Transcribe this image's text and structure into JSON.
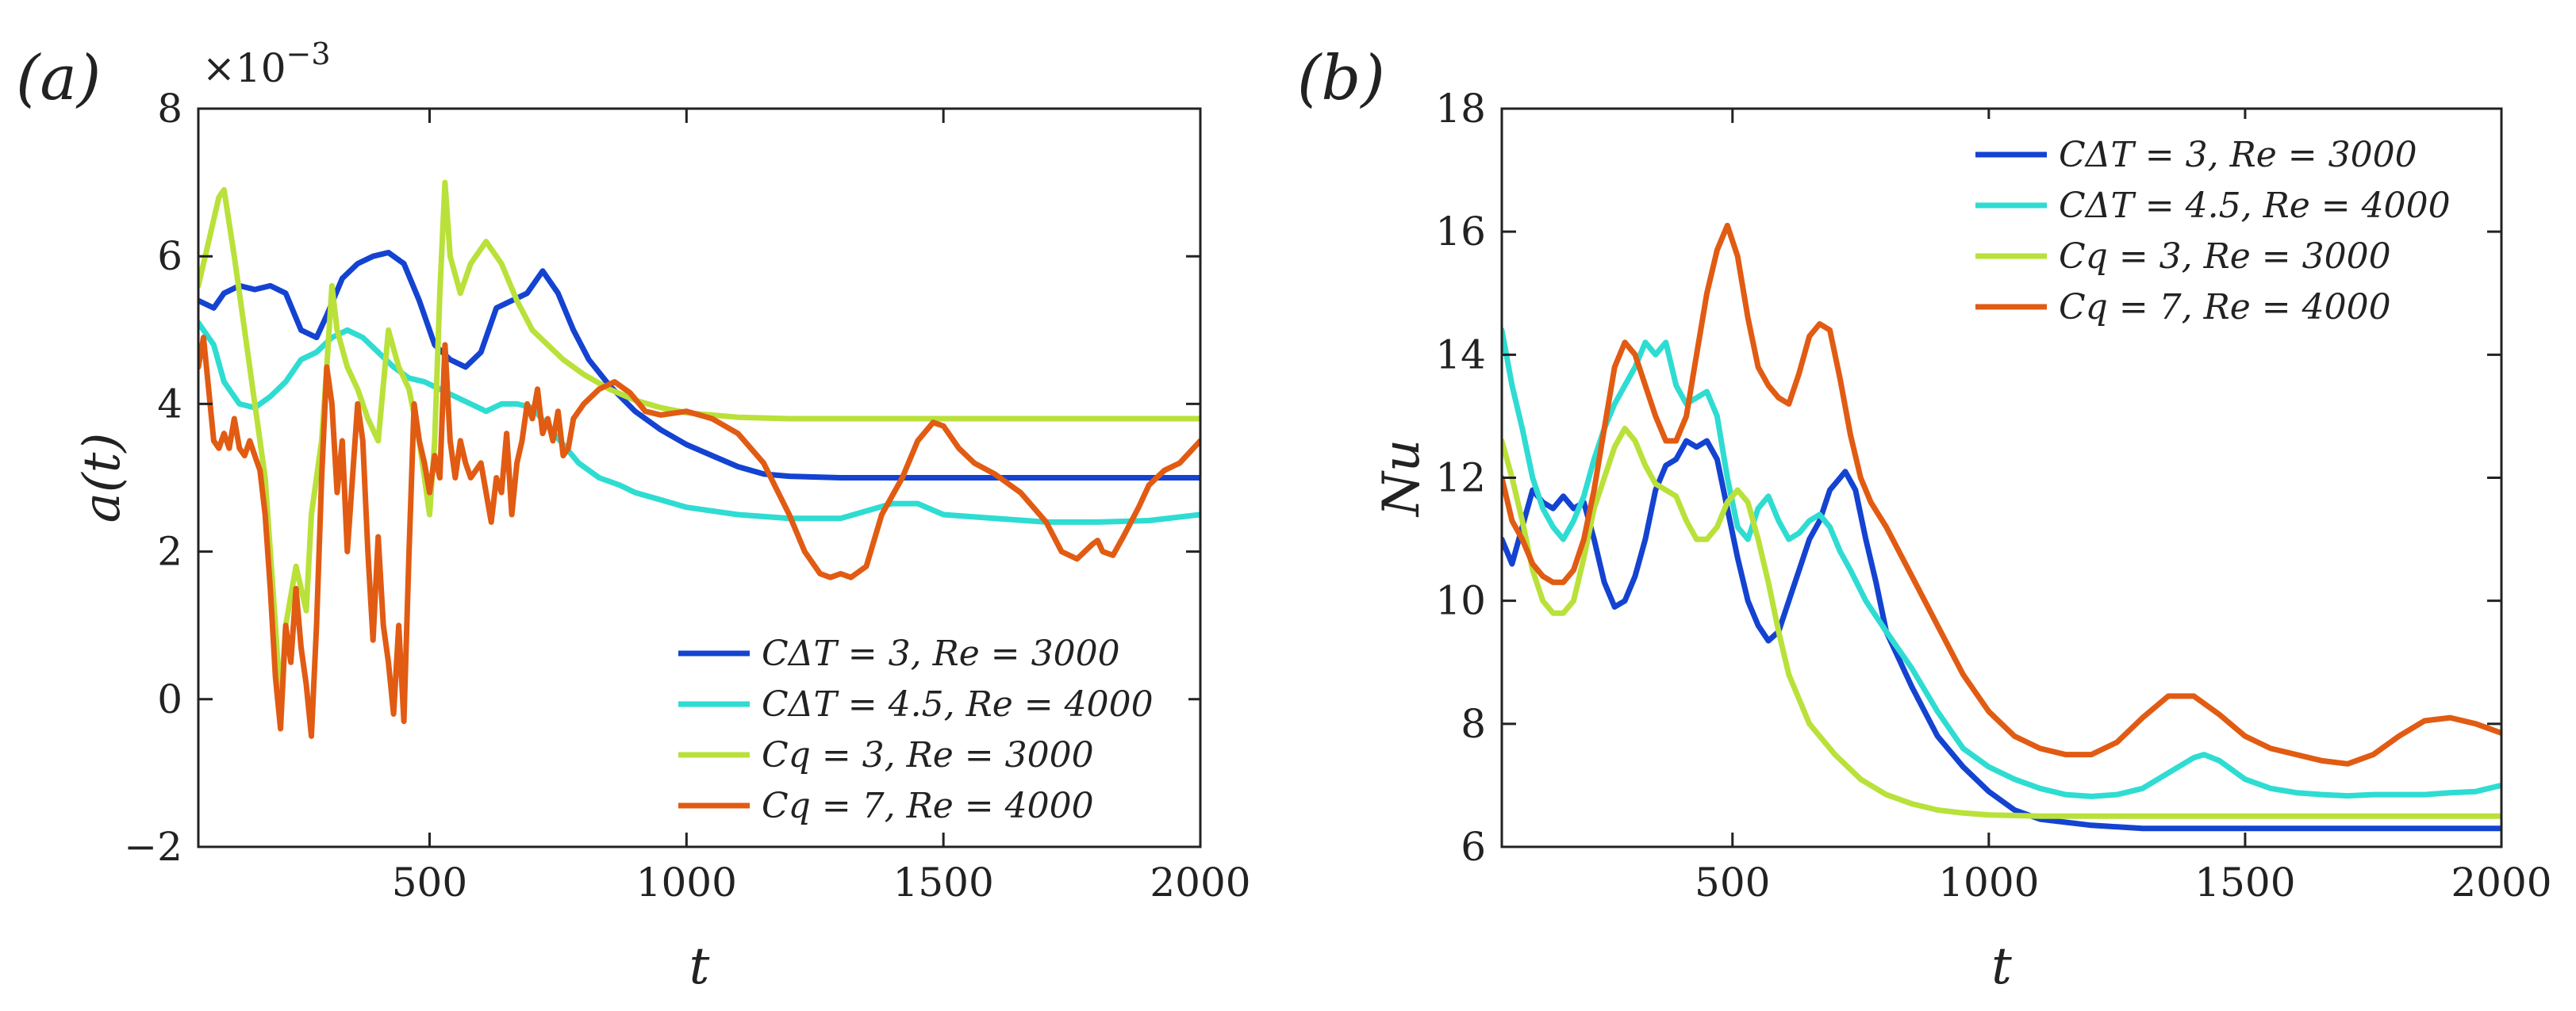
{
  "chart_data": [
    {
      "type": "line",
      "panel_label": "(a)",
      "xlabel": "t",
      "ylabel": "a(t)",
      "y_multiplier": "×10",
      "y_multiplier_exponent": "−3",
      "xlim": [
        50,
        2000
      ],
      "ylim": [
        -2,
        8
      ],
      "xticks": [
        500,
        1000,
        1500,
        2000
      ],
      "xtick_labels": [
        "500",
        "1000",
        "1500",
        "2000"
      ],
      "yticks": [
        -2,
        0,
        2,
        4,
        6,
        8
      ],
      "ytick_labels": [
        "−2",
        "0",
        "2",
        "4",
        "6",
        "8"
      ],
      "legend_position": "bottom-right",
      "series": [
        {
          "name": "C_ΔT = 3, Re = 3000",
          "legend_label": "CΔT = 3, Re = 3000",
          "color": "#1443d2",
          "x": [
            50,
            80,
            100,
            130,
            160,
            190,
            220,
            250,
            280,
            300,
            330,
            360,
            390,
            420,
            450,
            480,
            510,
            540,
            570,
            600,
            630,
            660,
            690,
            720,
            750,
            780,
            810,
            850,
            900,
            950,
            1000,
            1050,
            1100,
            1150,
            1200,
            1300,
            1400,
            1500,
            1600,
            1700,
            1800,
            1900,
            2000
          ],
          "y": [
            5.4,
            5.3,
            5.5,
            5.6,
            5.55,
            5.6,
            5.5,
            5.0,
            4.9,
            5.2,
            5.7,
            5.9,
            6.0,
            6.05,
            5.9,
            5.4,
            4.8,
            4.6,
            4.5,
            4.7,
            5.3,
            5.4,
            5.5,
            5.8,
            5.5,
            5.0,
            4.6,
            4.25,
            3.9,
            3.65,
            3.45,
            3.3,
            3.15,
            3.05,
            3.02,
            3.0,
            3.0,
            3.0,
            3.0,
            3.0,
            3.0,
            3.0,
            3.0
          ]
        },
        {
          "name": "C_ΔT = 4.5, Re = 4000",
          "legend_label": "CΔT = 4.5, Re = 4000",
          "color": "#2edcd2",
          "x": [
            50,
            80,
            100,
            130,
            160,
            190,
            220,
            250,
            280,
            310,
            340,
            370,
            400,
            430,
            460,
            490,
            520,
            550,
            580,
            610,
            640,
            670,
            700,
            730,
            760,
            790,
            830,
            870,
            900,
            950,
            1000,
            1100,
            1200,
            1300,
            1400,
            1450,
            1500,
            1600,
            1700,
            1800,
            1900,
            2000
          ],
          "y": [
            5.1,
            4.8,
            4.3,
            4.0,
            3.95,
            4.1,
            4.3,
            4.6,
            4.7,
            4.9,
            5.0,
            4.9,
            4.7,
            4.5,
            4.35,
            4.3,
            4.2,
            4.1,
            4.0,
            3.9,
            4.0,
            4.0,
            3.95,
            3.7,
            3.45,
            3.2,
            3.0,
            2.9,
            2.8,
            2.7,
            2.6,
            2.5,
            2.45,
            2.45,
            2.65,
            2.65,
            2.5,
            2.45,
            2.4,
            2.4,
            2.42,
            2.5
          ]
        },
        {
          "name": "C_q = 3, Re = 3000",
          "legend_label": "Cq = 3, Re = 3000",
          "color": "#b9e13a",
          "x": [
            50,
            70,
            90,
            100,
            120,
            140,
            160,
            180,
            200,
            210,
            220,
            240,
            260,
            270,
            290,
            300,
            310,
            320,
            340,
            360,
            380,
            400,
            420,
            440,
            460,
            480,
            500,
            510,
            520,
            530,
            540,
            560,
            580,
            610,
            640,
            670,
            700,
            730,
            760,
            800,
            850,
            900,
            950,
            1000,
            1100,
            1200,
            1300,
            1400,
            1500,
            1600,
            1700,
            1800,
            1900,
            2000
          ],
          "y": [
            5.6,
            6.2,
            6.8,
            6.9,
            6.0,
            5.0,
            4.0,
            3.0,
            1.0,
            -0.1,
            1.0,
            1.8,
            1.2,
            2.5,
            3.5,
            4.5,
            5.6,
            5.0,
            4.5,
            4.2,
            3.8,
            3.5,
            5.0,
            4.5,
            4.2,
            3.5,
            2.5,
            3.5,
            5.5,
            7.0,
            6.0,
            5.5,
            5.9,
            6.2,
            5.9,
            5.4,
            5.0,
            4.8,
            4.6,
            4.4,
            4.2,
            4.05,
            3.95,
            3.88,
            3.82,
            3.8,
            3.8,
            3.8,
            3.8,
            3.8,
            3.8,
            3.8,
            3.8,
            3.8
          ]
        },
        {
          "name": "C_q = 7, Re = 4000",
          "legend_label": "Cq = 7, Re = 4000",
          "color": "#e15b13",
          "x": [
            50,
            60,
            70,
            80,
            90,
            100,
            110,
            120,
            130,
            140,
            150,
            160,
            170,
            180,
            190,
            200,
            210,
            220,
            230,
            240,
            250,
            260,
            270,
            280,
            290,
            300,
            310,
            320,
            330,
            340,
            350,
            360,
            370,
            380,
            390,
            400,
            410,
            420,
            430,
            440,
            450,
            460,
            470,
            480,
            490,
            500,
            510,
            520,
            530,
            540,
            550,
            560,
            570,
            580,
            590,
            600,
            610,
            620,
            630,
            640,
            650,
            660,
            670,
            680,
            690,
            700,
            710,
            720,
            730,
            740,
            750,
            760,
            770,
            780,
            800,
            830,
            860,
            890,
            920,
            950,
            1000,
            1050,
            1100,
            1150,
            1200,
            1230,
            1260,
            1280,
            1300,
            1320,
            1350,
            1380,
            1420,
            1450,
            1480,
            1500,
            1530,
            1560,
            1600,
            1650,
            1700,
            1730,
            1760,
            1790,
            1800,
            1810,
            1830,
            1850,
            1880,
            1900,
            1930,
            1960,
            2000
          ],
          "y": [
            4.5,
            4.9,
            4.2,
            3.5,
            3.4,
            3.6,
            3.4,
            3.8,
            3.4,
            3.3,
            3.5,
            3.3,
            3.1,
            2.5,
            1.5,
            0.3,
            -0.4,
            1.0,
            0.5,
            1.5,
            0.7,
            0.2,
            -0.5,
            1.0,
            3.0,
            4.5,
            4.0,
            2.8,
            3.5,
            2.0,
            3.0,
            4.0,
            3.5,
            2.0,
            0.8,
            2.2,
            1.0,
            0.5,
            -0.2,
            1.0,
            -0.3,
            2.0,
            4.0,
            3.5,
            3.2,
            2.8,
            3.3,
            3.0,
            4.8,
            3.5,
            3.0,
            3.5,
            3.2,
            3.0,
            3.1,
            3.2,
            2.8,
            2.4,
            3.0,
            2.8,
            3.6,
            2.5,
            3.2,
            3.5,
            4.0,
            3.8,
            4.2,
            3.6,
            3.8,
            3.5,
            3.9,
            3.3,
            3.4,
            3.8,
            4.0,
            4.2,
            4.3,
            4.15,
            3.9,
            3.85,
            3.9,
            3.8,
            3.6,
            3.2,
            2.5,
            2.0,
            1.7,
            1.65,
            1.7,
            1.65,
            1.8,
            2.5,
            3.0,
            3.5,
            3.75,
            3.7,
            3.4,
            3.2,
            3.05,
            2.8,
            2.4,
            2.0,
            1.9,
            2.1,
            2.15,
            2.0,
            1.95,
            2.2,
            2.6,
            2.9,
            3.1,
            3.2,
            3.5
          ]
        }
      ]
    },
    {
      "type": "line",
      "panel_label": "(b)",
      "xlabel": "t",
      "ylabel": "Nu",
      "xlim": [
        50,
        2000
      ],
      "ylim": [
        6,
        18
      ],
      "xticks": [
        500,
        1000,
        1500,
        2000
      ],
      "xtick_labels": [
        "500",
        "1000",
        "1500",
        "2000"
      ],
      "yticks": [
        6,
        8,
        10,
        12,
        14,
        16,
        18
      ],
      "ytick_labels": [
        "6",
        "8",
        "10",
        "12",
        "14",
        "16",
        "18"
      ],
      "legend_position": "top-right",
      "series": [
        {
          "name": "C_ΔT = 3, Re = 3000",
          "legend_label": "CΔT = 3, Re = 3000",
          "color": "#1443d2",
          "x": [
            50,
            70,
            90,
            110,
            130,
            150,
            170,
            190,
            210,
            230,
            250,
            270,
            290,
            310,
            330,
            350,
            370,
            390,
            410,
            430,
            450,
            470,
            490,
            510,
            530,
            550,
            570,
            590,
            610,
            630,
            650,
            670,
            690,
            710,
            720,
            740,
            760,
            780,
            800,
            850,
            900,
            950,
            1000,
            1050,
            1100,
            1200,
            1300,
            1400,
            1500,
            1600,
            1700,
            1800,
            1900,
            2000
          ],
          "y": [
            11.0,
            10.6,
            11.2,
            11.8,
            11.6,
            11.5,
            11.7,
            11.5,
            11.6,
            11.0,
            10.3,
            9.9,
            10.0,
            10.4,
            11.0,
            11.8,
            12.2,
            12.3,
            12.6,
            12.5,
            12.6,
            12.3,
            11.5,
            10.7,
            10.0,
            9.6,
            9.35,
            9.5,
            10.0,
            10.5,
            11.0,
            11.3,
            11.8,
            12.0,
            12.1,
            11.8,
            11.0,
            10.3,
            9.5,
            8.6,
            7.8,
            7.3,
            6.9,
            6.6,
            6.45,
            6.35,
            6.3,
            6.3,
            6.3,
            6.3,
            6.3,
            6.3,
            6.3,
            6.3
          ]
        },
        {
          "name": "C_ΔT = 4.5, Re = 4000",
          "legend_label": "CΔT = 4.5, Re = 4000",
          "color": "#2edcd2",
          "x": [
            50,
            70,
            90,
            110,
            130,
            150,
            170,
            190,
            210,
            230,
            250,
            270,
            290,
            310,
            330,
            350,
            370,
            390,
            410,
            430,
            450,
            470,
            490,
            510,
            530,
            550,
            570,
            590,
            610,
            630,
            650,
            670,
            690,
            710,
            730,
            760,
            800,
            850,
            900,
            950,
            1000,
            1050,
            1100,
            1150,
            1200,
            1250,
            1300,
            1350,
            1400,
            1420,
            1450,
            1500,
            1550,
            1600,
            1650,
            1700,
            1750,
            1800,
            1850,
            1900,
            1950,
            2000
          ],
          "y": [
            14.4,
            13.5,
            12.8,
            12.0,
            11.5,
            11.2,
            11.0,
            11.3,
            11.7,
            12.3,
            12.8,
            13.2,
            13.5,
            13.8,
            14.2,
            14.0,
            14.2,
            13.5,
            13.2,
            13.3,
            13.4,
            13.0,
            12.0,
            11.2,
            11.0,
            11.5,
            11.7,
            11.3,
            11.0,
            11.1,
            11.3,
            11.4,
            11.2,
            10.8,
            10.5,
            10.0,
            9.5,
            8.9,
            8.2,
            7.6,
            7.3,
            7.1,
            6.95,
            6.85,
            6.82,
            6.85,
            6.95,
            7.2,
            7.45,
            7.5,
            7.4,
            7.1,
            6.95,
            6.88,
            6.85,
            6.83,
            6.85,
            6.85,
            6.85,
            6.88,
            6.9,
            7.0
          ]
        },
        {
          "name": "C_q = 3, Re = 3000",
          "legend_label": "Cq = 3, Re = 3000",
          "color": "#b9e13a",
          "x": [
            50,
            70,
            90,
            110,
            130,
            150,
            170,
            190,
            210,
            230,
            250,
            270,
            290,
            310,
            330,
            350,
            370,
            390,
            410,
            430,
            450,
            470,
            490,
            510,
            530,
            550,
            570,
            590,
            610,
            650,
            700,
            750,
            800,
            850,
            900,
            950,
            1000,
            1100,
            1200,
            1300,
            1400,
            1500,
            1600,
            1700,
            1800,
            1900,
            2000
          ],
          "y": [
            12.6,
            12.0,
            11.3,
            10.5,
            10.0,
            9.8,
            9.8,
            10.0,
            10.7,
            11.5,
            12.0,
            12.5,
            12.8,
            12.6,
            12.2,
            11.9,
            11.8,
            11.7,
            11.3,
            11.0,
            11.0,
            11.2,
            11.6,
            11.8,
            11.6,
            11.0,
            10.3,
            9.5,
            8.8,
            8.0,
            7.5,
            7.1,
            6.85,
            6.7,
            6.6,
            6.55,
            6.52,
            6.5,
            6.5,
            6.5,
            6.5,
            6.5,
            6.5,
            6.5,
            6.5,
            6.5,
            6.5
          ]
        },
        {
          "name": "C_q = 7, Re = 4000",
          "legend_label": "Cq = 7, Re = 4000",
          "color": "#e15b13",
          "x": [
            50,
            70,
            90,
            110,
            130,
            150,
            170,
            190,
            210,
            230,
            250,
            270,
            290,
            310,
            330,
            350,
            370,
            390,
            410,
            430,
            450,
            470,
            490,
            510,
            530,
            550,
            570,
            590,
            610,
            630,
            650,
            670,
            690,
            710,
            730,
            750,
            770,
            800,
            850,
            900,
            950,
            1000,
            1050,
            1100,
            1150,
            1200,
            1250,
            1300,
            1350,
            1400,
            1450,
            1500,
            1550,
            1600,
            1650,
            1700,
            1750,
            1800,
            1850,
            1900,
            1950,
            2000
          ],
          "y": [
            12.0,
            11.3,
            11.0,
            10.6,
            10.4,
            10.3,
            10.3,
            10.5,
            11.0,
            11.8,
            12.8,
            13.8,
            14.2,
            14.0,
            13.5,
            13.0,
            12.6,
            12.6,
            13.0,
            14.0,
            15.0,
            15.7,
            16.1,
            15.6,
            14.6,
            13.8,
            13.5,
            13.3,
            13.2,
            13.7,
            14.3,
            14.5,
            14.4,
            13.6,
            12.7,
            12.0,
            11.6,
            11.2,
            10.4,
            9.6,
            8.8,
            8.2,
            7.8,
            7.6,
            7.5,
            7.5,
            7.7,
            8.1,
            8.45,
            8.45,
            8.15,
            7.8,
            7.6,
            7.5,
            7.4,
            7.35,
            7.5,
            7.8,
            8.05,
            8.1,
            8.0,
            7.85
          ]
        }
      ]
    }
  ]
}
